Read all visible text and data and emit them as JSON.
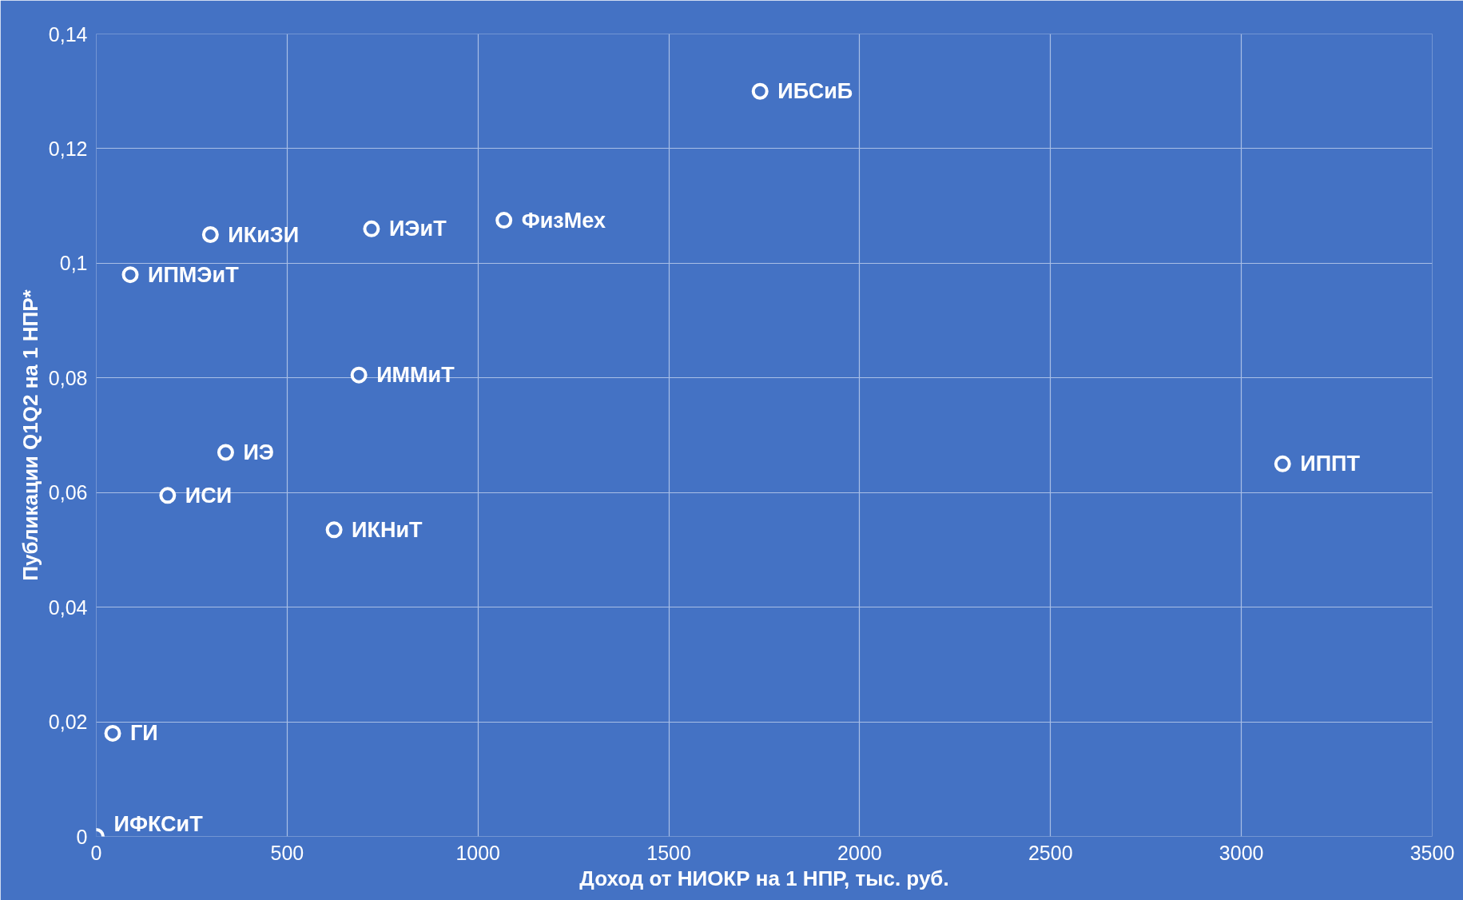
{
  "chart_data": {
    "type": "scatter",
    "xlabel": "Доход от НИОКР на 1 НПР, тыс. руб.",
    "ylabel": "Публикации Q1Q2 на 1 НПР*",
    "x": [
      1739,
      299,
      89,
      721,
      1068,
      688,
      339,
      187,
      623,
      3108,
      43,
      0
    ],
    "series": [
      {
        "color": "#ffffff",
        "values": [
          0.13,
          0.105,
          0.098,
          0.106,
          0.1075,
          0.0805,
          0.067,
          0.0595,
          0.0535,
          0.065,
          0.018,
          0
        ]
      }
    ],
    "annotations": [
      {
        "text": "ИБСиБ",
        "x": 1739,
        "y": 0.13
      },
      {
        "text": "ИКиЗИ",
        "x": 299,
        "y": 0.105
      },
      {
        "text": "ИПМЭиТ",
        "x": 89,
        "y": 0.098
      },
      {
        "text": "ИЭиТ",
        "x": 721,
        "y": 0.106
      },
      {
        "text": "ФизМех",
        "x": 1068,
        "y": 0.1075
      },
      {
        "text": "ИММиТ",
        "x": 688,
        "y": 0.0805
      },
      {
        "text": "ИЭ",
        "x": 339,
        "y": 0.067
      },
      {
        "text": "ИСИ",
        "x": 187,
        "y": 0.0595
      },
      {
        "text": "ИКНиТ",
        "x": 623,
        "y": 0.0535
      },
      {
        "text": "ИППТ",
        "x": 3108,
        "y": 0.065
      },
      {
        "text": "ГИ",
        "x": 43,
        "y": 0.018
      },
      {
        "text": "ИФКСиТ",
        "x": 0,
        "y": 0
      }
    ],
    "xlim": [
      0,
      3500
    ],
    "ylim": [
      0,
      0.14
    ],
    "xticks": [
      0,
      500,
      1000,
      1500,
      2000,
      2500,
      3000,
      3500
    ],
    "yticks": [
      0,
      {
        "value": 0.02,
        "label": "0,02"
      },
      {
        "value": 0.04,
        "label": "0,04"
      },
      {
        "value": 0.06,
        "label": "0,06"
      },
      {
        "value": 0.08,
        "label": "0,08"
      },
      {
        "value": 0.1,
        "label": "0,1"
      },
      {
        "value": 0.12,
        "label": "0,12"
      },
      {
        "value": 0.14,
        "label": "0,14"
      }
    ],
    "grid": true,
    "marker": "circle"
  }
}
